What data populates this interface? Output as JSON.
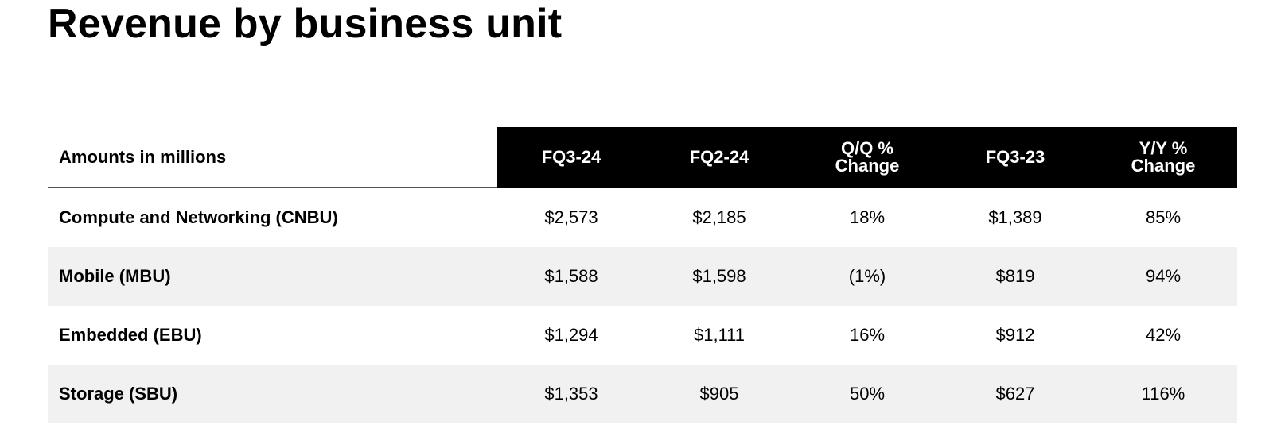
{
  "title": "Revenue by business unit",
  "table": {
    "label_header": "Amounts in millions",
    "columns": [
      "FQ3-24",
      "FQ2-24",
      "Q/Q %\nChange",
      "FQ3-23",
      "Y/Y %\nChange"
    ],
    "rows": [
      {
        "label": "Compute and Networking (CNBU)",
        "values": [
          "$2,573",
          "$2,185",
          "18%",
          "$1,389",
          "85%"
        ]
      },
      {
        "label": "Mobile (MBU)",
        "values": [
          "$1,588",
          "$1,598",
          "(1%)",
          "$819",
          "94%"
        ]
      },
      {
        "label": "Embedded (EBU)",
        "values": [
          "$1,294",
          "$1,111",
          "16%",
          "$912",
          "42%"
        ]
      },
      {
        "label": "Storage (SBU)",
        "values": [
          "$1,353",
          "$905",
          "50%",
          "$627",
          "116%"
        ]
      }
    ]
  },
  "colors": {
    "header_background": "#000000",
    "header_text": "#ffffff",
    "stripe_background": "#f1f1f1"
  }
}
